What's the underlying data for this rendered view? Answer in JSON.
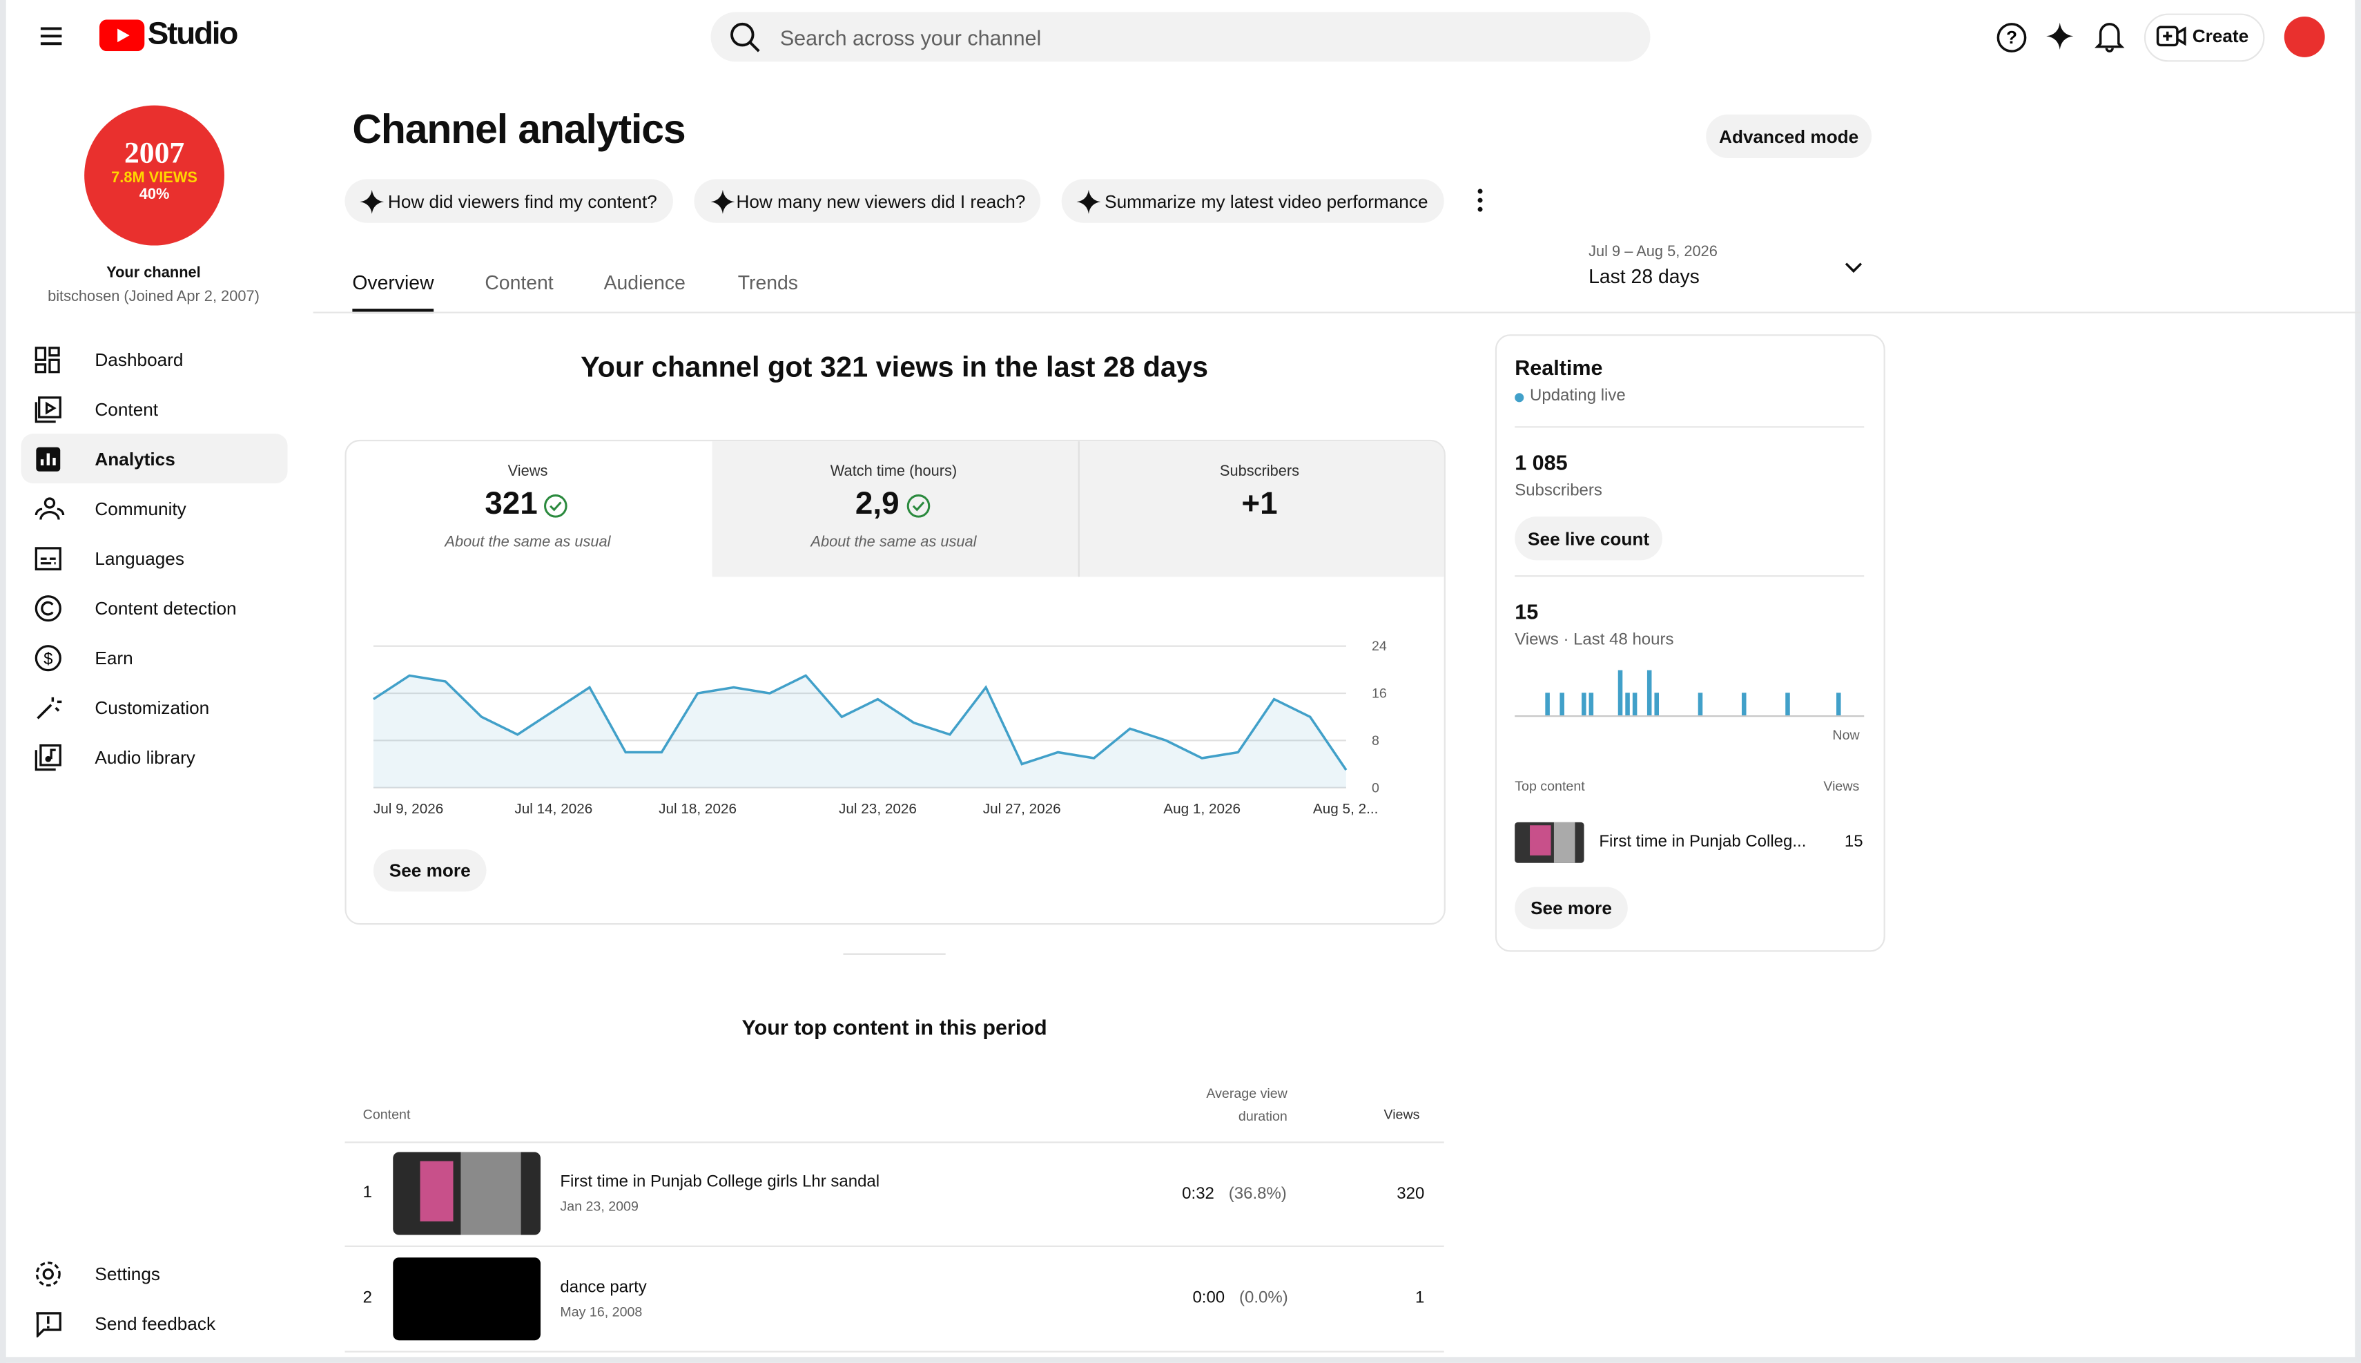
{
  "header": {
    "logo": "Studio",
    "search_placeholder": "Search across your channel",
    "create": "Create"
  },
  "sidebar": {
    "badge": [
      "2007",
      "7.8M VIEWS",
      "40%"
    ],
    "channel_label": "Your channel",
    "channel_sub": "bitschosen (Joined Apr 2, 2007)",
    "nav": [
      "Dashboard",
      "Content",
      "Analytics",
      "Community",
      "Languages",
      "Content detection",
      "Earn",
      "Customization",
      "Audio library"
    ],
    "footer_nav": [
      "Settings",
      "Send feedback"
    ]
  },
  "page": {
    "title": "Channel analytics",
    "advanced": "Advanced mode",
    "suggestions": [
      "How did viewers find my content?",
      "How many new viewers did I reach?",
      "Summarize my latest video performance"
    ],
    "tabs": [
      "Overview",
      "Content",
      "Audience",
      "Trends"
    ],
    "date_range": "Jul 9 – Aug 5, 2026",
    "period": "Last 28 days"
  },
  "overview": {
    "headline": "Your channel got 321 views in the last 28 days",
    "metrics": [
      {
        "label": "Views",
        "value": "321",
        "note": "About the same as usual"
      },
      {
        "label": "Watch time (hours)",
        "value": "2,9",
        "note": "About the same as usual"
      },
      {
        "label": "Subscribers",
        "value": "+1"
      }
    ],
    "chart": {
      "type": "line",
      "color": "#41a0c9",
      "categories": [
        "Jul 9, 2026",
        null,
        null,
        null,
        null,
        "Jul 14, 2026",
        null,
        null,
        null,
        "Jul 18, 2026",
        null,
        null,
        null,
        null,
        "Jul 23, 2026",
        null,
        null,
        null,
        "Jul 27, 2026",
        null,
        null,
        null,
        null,
        "Aug 1, 2026",
        null,
        null,
        null,
        "Aug 5, 2..."
      ],
      "values": [
        15,
        19,
        18,
        12,
        9,
        13,
        17,
        6,
        6,
        16,
        17,
        16,
        19,
        12,
        15,
        11,
        9,
        17,
        4,
        6,
        5,
        10,
        8,
        5,
        6,
        15,
        12,
        3
      ],
      "ylim": [
        0,
        24
      ],
      "yticks": [
        0,
        8,
        16,
        24
      ],
      "grid": true
    },
    "see_more": "See more"
  },
  "realtime": {
    "title": "Realtime",
    "status": "Updating live",
    "subscribers": "1 085",
    "subscribers_label": "Subscribers",
    "live_count": "See live count",
    "views": "15",
    "views_label": "Views · Last 48 hours",
    "chart": {
      "type": "bar",
      "color": "#41a0c9",
      "values": [
        0,
        0,
        0,
        0,
        1,
        0,
        1,
        0,
        0,
        1,
        1,
        0,
        0,
        0,
        2,
        1,
        1,
        0,
        2,
        1,
        0,
        0,
        0,
        0,
        0,
        1,
        0,
        0,
        0,
        0,
        0,
        1,
        0,
        0,
        0,
        0,
        0,
        1,
        0,
        0,
        0,
        0,
        0,
        0,
        1,
        0,
        0,
        0
      ],
      "end_label": "Now"
    },
    "top_label": "Top content",
    "views_col": "Views",
    "top_title": "First time in Punjab Colleg...",
    "top_views": 15,
    "see_more": "See more"
  },
  "top_content": {
    "title": "Your top content in this period",
    "columns": [
      "Content",
      "Average view duration",
      "Views"
    ],
    "rows": [
      {
        "rank": 1,
        "title": "First time in Punjab College girls Lhr sandal",
        "date": "Jan 23, 2009",
        "duration": "0:32",
        "percent": "(36.8%)",
        "views": 320
      },
      {
        "rank": 2,
        "title": "dance party",
        "date": "May 16, 2008",
        "duration": "0:00",
        "percent": "(0.0%)",
        "views": 1
      }
    ]
  }
}
